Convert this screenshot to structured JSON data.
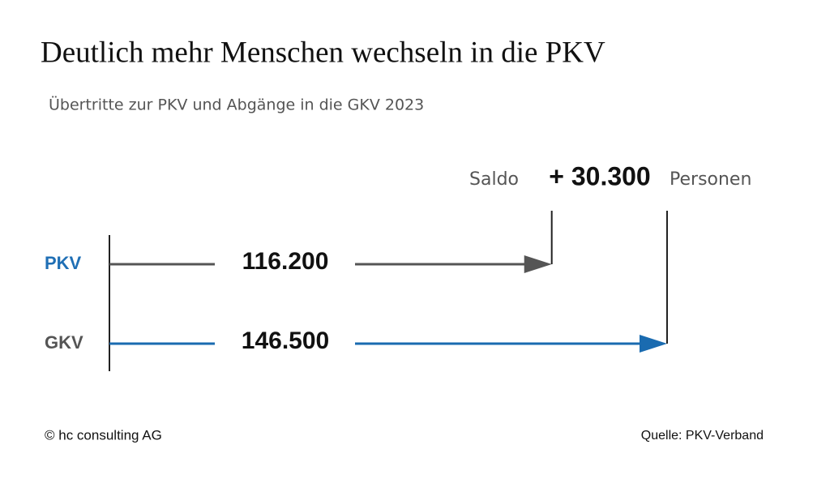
{
  "chart_data": {
    "type": "arrow",
    "title": "Deutlich mehr Menschen wechseln in die PKV",
    "subtitle": "Übertritte zur PKV und Abgänge in die GKV 2023",
    "categories": [
      "PKV",
      "GKV"
    ],
    "category_colors": [
      "#1f6fb5",
      "#555555"
    ],
    "series": [
      {
        "name": null,
        "colors": [
          "#555555",
          "#1a6bb0"
        ],
        "values": [
          116200,
          146500
        ],
        "value_labels": [
          "116.200",
          "146.500"
        ]
      }
    ],
    "xlim": [
      0,
      146500
    ],
    "saldo": {
      "label": "Saldo",
      "value": 30300,
      "value_label": "+ 30.300",
      "unit": "Personen"
    },
    "footer_left": "© hc consulting AG",
    "footer_right": "Quelle: PKV-Verband"
  }
}
